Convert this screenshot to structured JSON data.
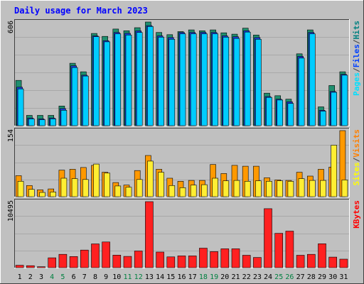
{
  "title": "Daily usage for March 2023",
  "chart_data": [
    {
      "type": "bar",
      "panel": "hits-files-pages",
      "ymax_label": "606",
      "ylim": [
        0,
        606
      ],
      "legend": [
        "Pages",
        "/",
        "Files",
        "/",
        "Hits"
      ],
      "legend_colors": [
        "#00e0ff",
        "#404040",
        "#0040ff",
        "#404040",
        "#008080"
      ],
      "categories": [
        "1",
        "2",
        "3",
        "4",
        "5",
        "6",
        "7",
        "8",
        "9",
        "10",
        "11",
        "12",
        "13",
        "14",
        "15",
        "16",
        "17",
        "18",
        "19",
        "20",
        "21",
        "22",
        "23",
        "24",
        "25",
        "26",
        "27",
        "28",
        "29",
        "30",
        "31"
      ],
      "weekend_days": [
        "4",
        "5",
        "11",
        "12",
        "18",
        "19",
        "25",
        "26"
      ],
      "series": [
        {
          "name": "Hits",
          "color": "#1f8f6f",
          "values": [
            265,
            60,
            60,
            60,
            115,
            365,
            315,
            539,
            522,
            565,
            555,
            573,
            606,
            545,
            532,
            550,
            560,
            555,
            560,
            543,
            535,
            570,
            530,
            190,
            175,
            155,
            420,
            560,
            110,
            235,
            315
          ]
        },
        {
          "name": "Files",
          "color": "#1a3fd8",
          "values": [
            225,
            45,
            40,
            45,
            100,
            350,
            295,
            525,
            497,
            545,
            540,
            554,
            585,
            525,
            515,
            545,
            545,
            546,
            545,
            525,
            520,
            555,
            515,
            170,
            155,
            140,
            405,
            545,
            90,
            200,
            300
          ]
        },
        {
          "name": "Pages",
          "color": "#00ccff",
          "values": [
            215,
            40,
            35,
            40,
            90,
            340,
            290,
            520,
            490,
            537,
            530,
            545,
            580,
            517,
            505,
            537,
            537,
            537,
            537,
            517,
            510,
            547,
            505,
            165,
            150,
            130,
            395,
            537,
            85,
            195,
            295
          ]
        }
      ]
    },
    {
      "type": "bar",
      "panel": "visits-sites",
      "ymax_label": "154",
      "ylim": [
        0,
        154
      ],
      "legend": [
        "Sites",
        "/",
        "Visits"
      ],
      "legend_colors": [
        "#ffff00",
        "#404040",
        "#ff8000"
      ],
      "categories": [
        "1",
        "2",
        "3",
        "4",
        "5",
        "6",
        "7",
        "8",
        "9",
        "10",
        "11",
        "12",
        "13",
        "14",
        "15",
        "16",
        "17",
        "18",
        "19",
        "20",
        "21",
        "22",
        "23",
        "24",
        "25",
        "26",
        "27",
        "28",
        "29",
        "30",
        "31"
      ],
      "series": [
        {
          "name": "Visits",
          "color": "#ff9900",
          "values": [
            49,
            26,
            16,
            18,
            62,
            64,
            68,
            73,
            57,
            33,
            27,
            61,
            96,
            64,
            43,
            36,
            38,
            38,
            75,
            54,
            73,
            71,
            71,
            44,
            39,
            38,
            57,
            48,
            64,
            69,
            154
          ]
        },
        {
          "name": "Sites",
          "color": "#ffee33",
          "values": [
            36,
            17,
            10,
            11,
            43,
            42,
            40,
            76,
            55,
            25,
            22,
            40,
            83,
            57,
            26,
            21,
            27,
            28,
            43,
            37,
            38,
            36,
            37,
            36,
            37,
            36,
            42,
            38,
            38,
            120,
            39
          ]
        }
      ]
    },
    {
      "type": "bar",
      "panel": "kbytes",
      "ymax_label": "10495",
      "ylim": [
        0,
        10495
      ],
      "legend": [
        "KBytes"
      ],
      "legend_colors": [
        "#ff0000"
      ],
      "categories": [
        "1",
        "2",
        "3",
        "4",
        "5",
        "6",
        "7",
        "8",
        "9",
        "10",
        "11",
        "12",
        "13",
        "14",
        "15",
        "16",
        "17",
        "18",
        "19",
        "20",
        "21",
        "22",
        "23",
        "24",
        "25",
        "26",
        "27",
        "28",
        "29",
        "30",
        "31"
      ],
      "series": [
        {
          "name": "KBytes",
          "color": "#ff2020",
          "values": [
            380,
            320,
            150,
            1570,
            2120,
            1770,
            2800,
            3780,
            4080,
            2000,
            1790,
            2650,
            10495,
            2480,
            1720,
            1870,
            1870,
            3100,
            2550,
            3000,
            3000,
            1970,
            1620,
            9380,
            5460,
            5810,
            1970,
            2120,
            3800,
            1680,
            1350
          ]
        }
      ]
    }
  ]
}
